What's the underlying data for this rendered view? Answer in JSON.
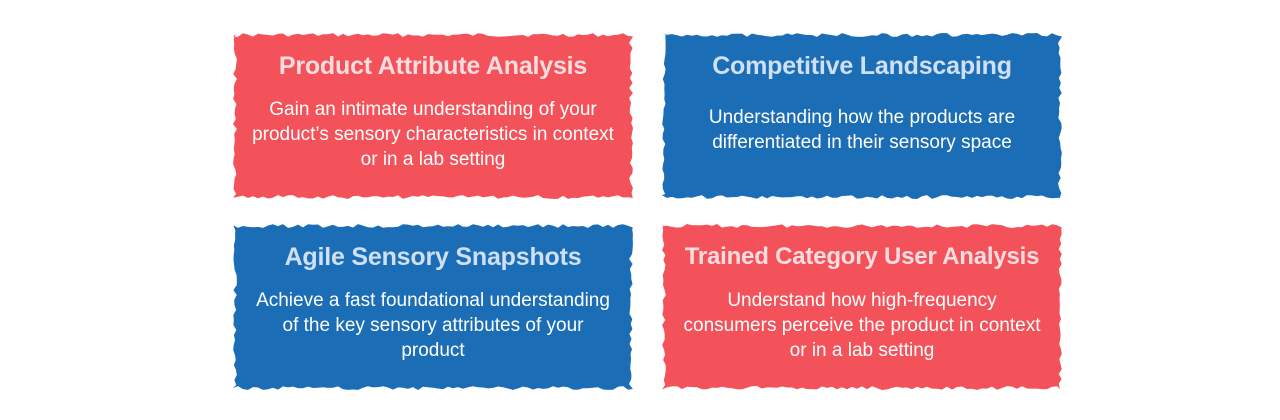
{
  "colors": {
    "red": "#f4525a",
    "blue": "#1b6db6"
  },
  "cards": [
    {
      "title": "Product Attribute Analysis",
      "description": "Gain an intimate understanding of your product’s sensory characteristics in context or in a lab setting",
      "color": "red"
    },
    {
      "title": "Competitive Landscaping",
      "description": "Understanding how the products are differentiated in their sensory space",
      "color": "blue"
    },
    {
      "title": "Agile Sensory Snapshots",
      "description": "Achieve a fast foundational understanding of the key sensory attributes of your product",
      "color": "blue"
    },
    {
      "title": "Trained Category User Analysis",
      "description": "Understand how high-frequency consumers perceive the product in context or in a lab setting",
      "color": "red"
    }
  ]
}
